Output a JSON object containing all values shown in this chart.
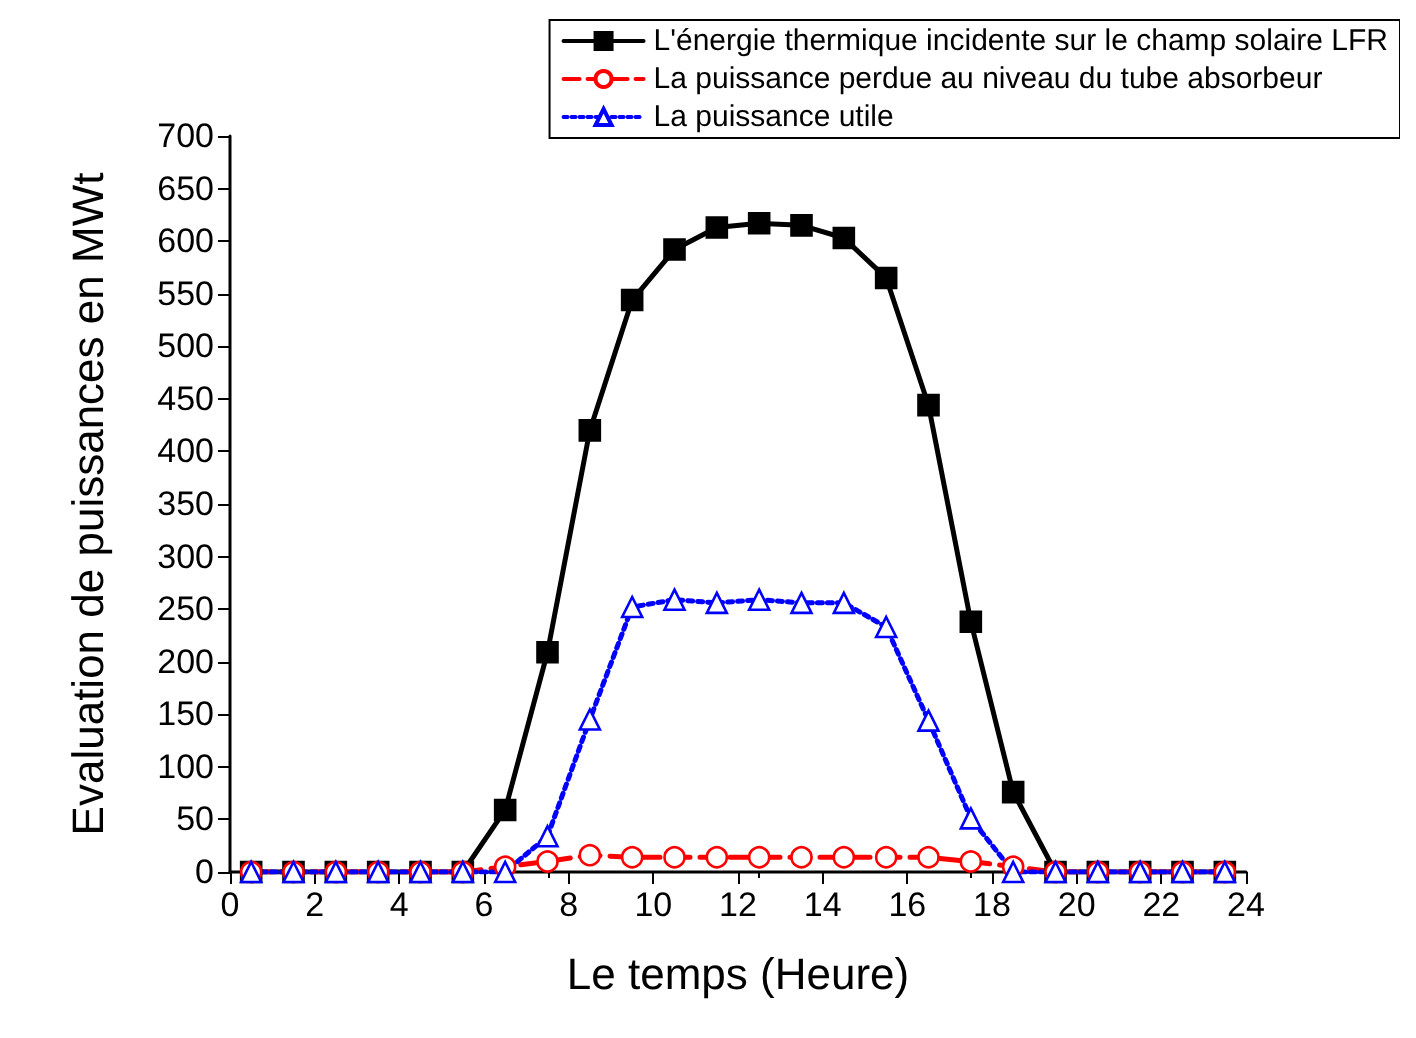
{
  "chart_data": {
    "type": "line",
    "xlabel": "Le temps (Heure)",
    "ylabel": "Evaluation de puissances en MWt",
    "xlim": [
      0,
      24
    ],
    "xticks": [
      0,
      2,
      4,
      6,
      8,
      10,
      12,
      14,
      16,
      18,
      20,
      22,
      24
    ],
    "ylim": [
      0,
      700
    ],
    "yticks": [
      0,
      50,
      100,
      150,
      200,
      250,
      300,
      350,
      400,
      450,
      500,
      550,
      600,
      650,
      700
    ],
    "x": [
      0.5,
      1.5,
      2.5,
      3.5,
      4.5,
      5.5,
      6.5,
      7.5,
      8.5,
      9.5,
      10.5,
      11.5,
      12.5,
      13.5,
      14.5,
      15.5,
      16.5,
      17.5,
      18.5,
      19.5,
      20.5,
      21.5,
      22.5,
      23.5
    ],
    "legend": "top right",
    "grid": false,
    "series": [
      {
        "name": "L'énergie thermique incidente sur le champ solaire LFR",
        "color": "#000000",
        "marker": "square",
        "line_style": "solid",
        "values": [
          0,
          0,
          0,
          0,
          0,
          0,
          59,
          209,
          420,
          544,
          592,
          613,
          617,
          615,
          603,
          565,
          444,
          238,
          76,
          0,
          0,
          0,
          0,
          0
        ]
      },
      {
        "name": "La puissance perdue au niveau du tube absorbeur",
        "color": "#ff0000",
        "marker": "circle",
        "line_style": "dashed",
        "values": [
          0,
          0,
          0,
          0,
          0,
          0,
          5,
          10,
          16,
          14,
          14,
          14,
          14,
          14,
          14,
          14,
          14,
          10,
          5,
          0,
          0,
          0,
          0,
          0
        ]
      },
      {
        "name": "La puissance utile",
        "color": "#0000ff",
        "marker": "triangle",
        "line_style": "dotted",
        "values": [
          0,
          0,
          0,
          0,
          0,
          0,
          0,
          34,
          145,
          252,
          259,
          256,
          259,
          256,
          256,
          233,
          144,
          51,
          0,
          0,
          0,
          0,
          0,
          0
        ]
      }
    ]
  }
}
